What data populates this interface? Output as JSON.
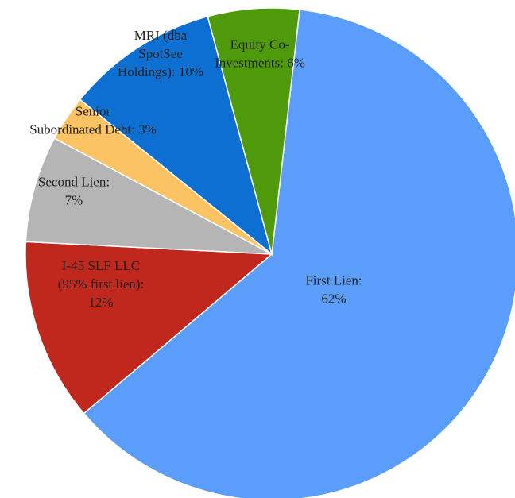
{
  "chart_data": {
    "type": "pie",
    "title": "",
    "legend": "none",
    "slices": [
      {
        "name": "First Lien",
        "value": 62,
        "color": "#5b9dfa",
        "label_lines": [
          "First Lien:",
          "62%"
        ]
      },
      {
        "name": "I-45 SLF LLC (95% first lien)",
        "value": 12,
        "color": "#c0271d",
        "label_lines": [
          "I-45 SLF LLC",
          "(95% first lien):",
          "12%"
        ]
      },
      {
        "name": "Second Lien",
        "value": 7,
        "color": "#b5b5b5",
        "label_lines": [
          "Second Lien:",
          "7%"
        ]
      },
      {
        "name": "Senior Subordinated Debt",
        "value": 3,
        "color": "#fbc363",
        "label_lines": [
          "Senior",
          "Subordinated Debt: 3%"
        ]
      },
      {
        "name": "MRI (dba SpotSee Holdings)",
        "value": 10,
        "color": "#0d6fd1",
        "label_lines": [
          "MRI (dba",
          "SpotSee",
          "Holdings): 10%"
        ]
      },
      {
        "name": "Equity Co-Investments",
        "value": 6,
        "color": "#4f9a0b",
        "label_lines": [
          "Equity Co-",
          "Investments: 6%"
        ]
      }
    ]
  }
}
